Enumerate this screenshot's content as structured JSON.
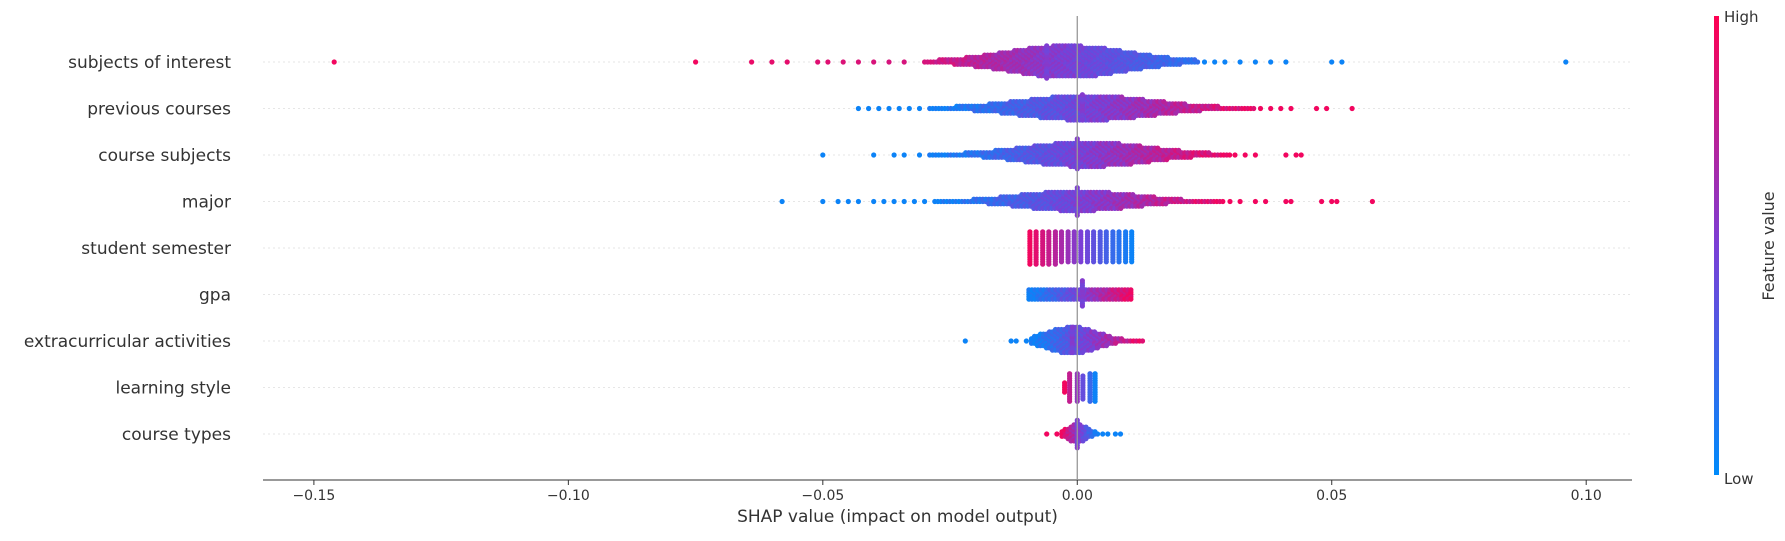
{
  "chart_data": {
    "type": "scatter",
    "subtype": "shap-beeswarm",
    "xlabel": "SHAP value (impact on model output)",
    "xlim": [
      -0.16,
      0.109
    ],
    "xticks": [
      -0.15,
      -0.1,
      -0.05,
      0.0,
      0.05,
      0.1
    ],
    "xtick_labels": [
      "−0.15",
      "−0.10",
      "−0.05",
      "0.00",
      "0.05",
      "0.10"
    ],
    "grid": false,
    "colorbar": {
      "label": "Feature value",
      "high_label": "High",
      "low_label": "Low",
      "low_color": "#008bfb",
      "high_color": "#ff0052"
    },
    "colors": {
      "axis": "#333333",
      "zero_line": "#999999",
      "row_line": "#e6e6e6",
      "text": "#333333"
    },
    "features": [
      {
        "name": "subjects of interest",
        "outliers_neg": [
          {
            "x": -0.146,
            "c": 0.95
          },
          {
            "x": -0.075,
            "c": 0.95
          },
          {
            "x": -0.064,
            "c": 0.92
          },
          {
            "x": -0.06,
            "c": 0.9
          },
          {
            "x": -0.057,
            "c": 0.9
          },
          {
            "x": -0.051,
            "c": 0.88
          },
          {
            "x": -0.049,
            "c": 0.88
          },
          {
            "x": -0.046,
            "c": 0.86
          },
          {
            "x": -0.043,
            "c": 0.86
          },
          {
            "x": -0.04,
            "c": 0.85
          },
          {
            "x": -0.037,
            "c": 0.84
          },
          {
            "x": -0.034,
            "c": 0.84
          }
        ],
        "outliers_pos": [
          {
            "x": 0.025,
            "c": 0.05
          },
          {
            "x": 0.027,
            "c": 0.05
          },
          {
            "x": 0.029,
            "c": 0.05
          },
          {
            "x": 0.032,
            "c": 0.05
          },
          {
            "x": 0.035,
            "c": 0.05
          },
          {
            "x": 0.038,
            "c": 0.05
          },
          {
            "x": 0.041,
            "c": 0.05
          },
          {
            "x": 0.05,
            "c": 0.05
          },
          {
            "x": 0.052,
            "c": 0.05
          },
          {
            "x": 0.096,
            "c": 0.05
          }
        ],
        "core": {
          "from": -0.03,
          "to": 0.024,
          "center": -0.002,
          "spread": 0.012,
          "peak": 14,
          "c_low": 0.85,
          "c_high": 0.15
        },
        "stack": {
          "x": -0.006,
          "height": 15
        }
      },
      {
        "name": "previous courses",
        "outliers_neg": [
          {
            "x": -0.043,
            "c": 0.05
          },
          {
            "x": -0.041,
            "c": 0.05
          },
          {
            "x": -0.039,
            "c": 0.05
          },
          {
            "x": -0.037,
            "c": 0.05
          },
          {
            "x": -0.035,
            "c": 0.05
          },
          {
            "x": -0.033,
            "c": 0.05
          },
          {
            "x": -0.031,
            "c": 0.05
          }
        ],
        "outliers_pos": [
          {
            "x": 0.036,
            "c": 0.95
          },
          {
            "x": 0.038,
            "c": 0.95
          },
          {
            "x": 0.04,
            "c": 0.95
          },
          {
            "x": 0.042,
            "c": 0.95
          },
          {
            "x": 0.047,
            "c": 0.95
          },
          {
            "x": 0.049,
            "c": 0.95
          },
          {
            "x": 0.054,
            "c": 0.95
          }
        ],
        "core": {
          "from": -0.029,
          "to": 0.035,
          "center": 0.002,
          "spread": 0.013,
          "peak": 11,
          "c_low": 0.05,
          "c_high": 0.95
        },
        "stack": {
          "x": 0.001,
          "height": 12
        }
      },
      {
        "name": "course subjects",
        "outliers_neg": [
          {
            "x": -0.05,
            "c": 0.05
          },
          {
            "x": -0.04,
            "c": 0.05
          },
          {
            "x": -0.036,
            "c": 0.05
          },
          {
            "x": -0.034,
            "c": 0.05
          },
          {
            "x": -0.031,
            "c": 0.05
          }
        ],
        "outliers_pos": [
          {
            "x": 0.031,
            "c": 0.95
          },
          {
            "x": 0.033,
            "c": 0.95
          },
          {
            "x": 0.035,
            "c": 0.95
          },
          {
            "x": 0.041,
            "c": 0.95
          },
          {
            "x": 0.043,
            "c": 0.95
          },
          {
            "x": 0.044,
            "c": 0.95
          }
        ],
        "core": {
          "from": -0.029,
          "to": 0.03,
          "center": 0.002,
          "spread": 0.012,
          "peak": 11,
          "c_low": 0.05,
          "c_high": 0.95
        },
        "stack": {
          "x": 0.0,
          "height": 14
        }
      },
      {
        "name": "major",
        "outliers_neg": [
          {
            "x": -0.058,
            "c": 0.05
          },
          {
            "x": -0.05,
            "c": 0.05
          },
          {
            "x": -0.047,
            "c": 0.05
          },
          {
            "x": -0.045,
            "c": 0.05
          },
          {
            "x": -0.043,
            "c": 0.05
          },
          {
            "x": -0.04,
            "c": 0.05
          },
          {
            "x": -0.038,
            "c": 0.05
          },
          {
            "x": -0.036,
            "c": 0.05
          },
          {
            "x": -0.034,
            "c": 0.05
          },
          {
            "x": -0.032,
            "c": 0.05
          },
          {
            "x": -0.03,
            "c": 0.05
          }
        ],
        "outliers_pos": [
          {
            "x": 0.03,
            "c": 0.95
          },
          {
            "x": 0.032,
            "c": 0.95
          },
          {
            "x": 0.035,
            "c": 0.95
          },
          {
            "x": 0.037,
            "c": 0.95
          },
          {
            "x": 0.041,
            "c": 0.95
          },
          {
            "x": 0.042,
            "c": 0.95
          },
          {
            "x": 0.048,
            "c": 0.95
          },
          {
            "x": 0.05,
            "c": 0.95
          },
          {
            "x": 0.051,
            "c": 0.95
          },
          {
            "x": 0.058,
            "c": 0.95
          }
        ],
        "core": {
          "from": -0.028,
          "to": 0.029,
          "center": 0.0,
          "spread": 0.011,
          "peak": 9,
          "c_low": 0.05,
          "c_high": 0.95
        },
        "stack": {
          "x": 0.0,
          "height": 13
        }
      },
      {
        "name": "student semester",
        "outliers_neg": [],
        "outliers_pos": [],
        "columns": {
          "x": [
            -0.0093,
            -0.0081,
            -0.0068,
            -0.0056,
            -0.0043,
            -0.0031,
            -0.0018,
            -0.0006,
            0.0007,
            0.002,
            0.0032,
            0.0045,
            0.0057,
            0.007,
            0.0082,
            0.0095,
            0.0107
          ],
          "height": [
            15,
            15,
            15,
            15,
            15,
            14,
            14,
            14,
            14,
            14,
            14,
            14,
            14,
            14,
            14,
            14,
            14
          ]
        },
        "c_low": 0.95,
        "c_high": 0.05
      },
      {
        "name": "gpa",
        "outliers_neg": [],
        "outliers_pos": [],
        "core": {
          "from": -0.0095,
          "to": 0.0108,
          "center": 0.001,
          "spread": 0.01,
          "peak": 5,
          "flat": true,
          "c_low": 0.05,
          "c_high": 0.95
        },
        "stack": {
          "x": 0.001,
          "height": 12
        }
      },
      {
        "name": "extracurricular activities",
        "outliers_neg": [
          {
            "x": -0.022,
            "c": 0.05
          },
          {
            "x": -0.013,
            "c": 0.05
          },
          {
            "x": -0.012,
            "c": 0.05
          },
          {
            "x": -0.01,
            "c": 0.05
          }
        ],
        "outliers_pos": [],
        "core": {
          "from": -0.009,
          "to": 0.013,
          "center": -0.001,
          "spread": 0.005,
          "peak": 12,
          "c_low": 0.05,
          "c_high": 0.95
        },
        "stack": {
          "x": -0.001,
          "height": 12
        }
      },
      {
        "name": "learning style",
        "outliers_neg": [],
        "outliers_pos": [],
        "columns": {
          "x": [
            -0.0025,
            -0.0015,
            0.0,
            0.0011,
            0.0025,
            0.0035
          ],
          "height": [
            5,
            13,
            13,
            11,
            13,
            13
          ]
        },
        "c_low": 0.95,
        "c_high": 0.05
      },
      {
        "name": "course types",
        "outliers_neg": [
          {
            "x": -0.006,
            "c": 0.95
          },
          {
            "x": -0.004,
            "c": 0.95
          }
        ],
        "outliers_pos": [
          {
            "x": 0.004,
            "c": 0.05
          },
          {
            "x": 0.005,
            "c": 0.05
          },
          {
            "x": 0.006,
            "c": 0.05
          },
          {
            "x": 0.0075,
            "c": 0.05
          },
          {
            "x": 0.0085,
            "c": 0.05
          }
        ],
        "core": {
          "from": -0.003,
          "to": 0.004,
          "center": 0.0,
          "spread": 0.002,
          "peak": 8,
          "c_low": 0.95,
          "c_high": 0.05
        },
        "stack": {
          "x": 0.0,
          "height": 13
        }
      }
    ]
  }
}
